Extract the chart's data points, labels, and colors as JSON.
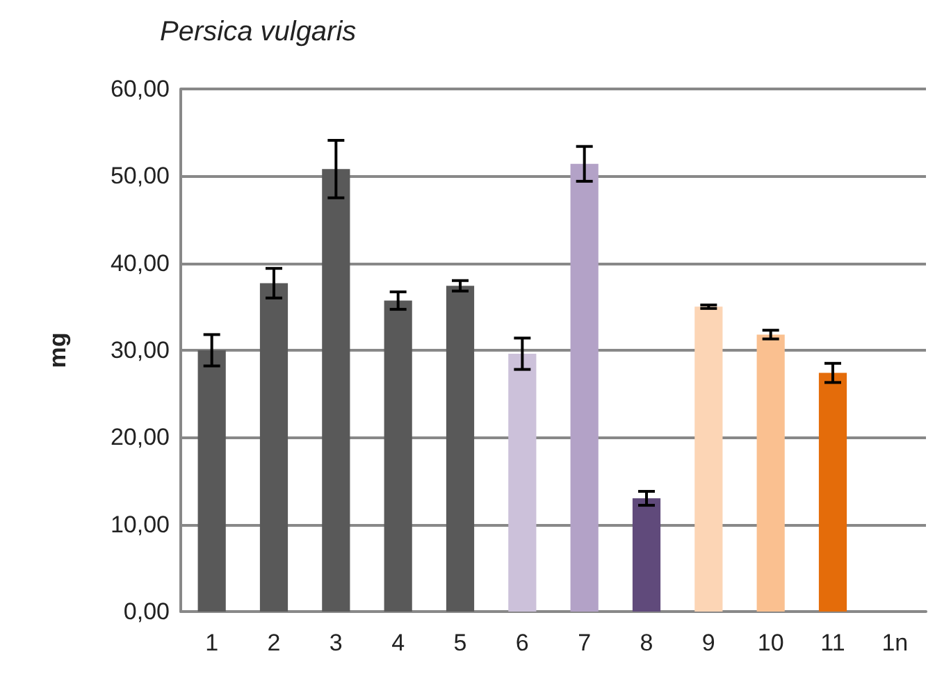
{
  "chart_data": {
    "type": "bar",
    "title": "Persica vulgaris",
    "ylabel": "mg",
    "categories": [
      "1",
      "2",
      "3",
      "4",
      "5",
      "6",
      "7",
      "8",
      "9",
      "10",
      "11",
      "1n"
    ],
    "values": [
      30.0,
      37.7,
      50.8,
      35.7,
      37.4,
      29.6,
      51.4,
      13.0,
      35.0,
      31.8,
      27.4,
      null
    ],
    "colors": [
      "#595959",
      "#595959",
      "#595959",
      "#595959",
      "#595959",
      "#ccc1da",
      "#b3a2c7",
      "#604a7b",
      "#fcd5b5",
      "#fac090",
      "#e46c0a",
      "#595959"
    ],
    "errors": [
      1.8,
      1.7,
      3.3,
      1.0,
      0.6,
      1.8,
      2.0,
      0.8,
      0.2,
      0.5,
      1.1,
      null
    ],
    "ylim": [
      0,
      60
    ],
    "yticks": [
      {
        "value": 0,
        "label": "0,00"
      },
      {
        "value": 10,
        "label": "10,00"
      },
      {
        "value": 20,
        "label": "20,00"
      },
      {
        "value": 30,
        "label": "30,00"
      },
      {
        "value": 40,
        "label": "40,00"
      },
      {
        "value": 50,
        "label": "50,00"
      },
      {
        "value": 60,
        "label": "60,00"
      }
    ],
    "grid": "y"
  }
}
